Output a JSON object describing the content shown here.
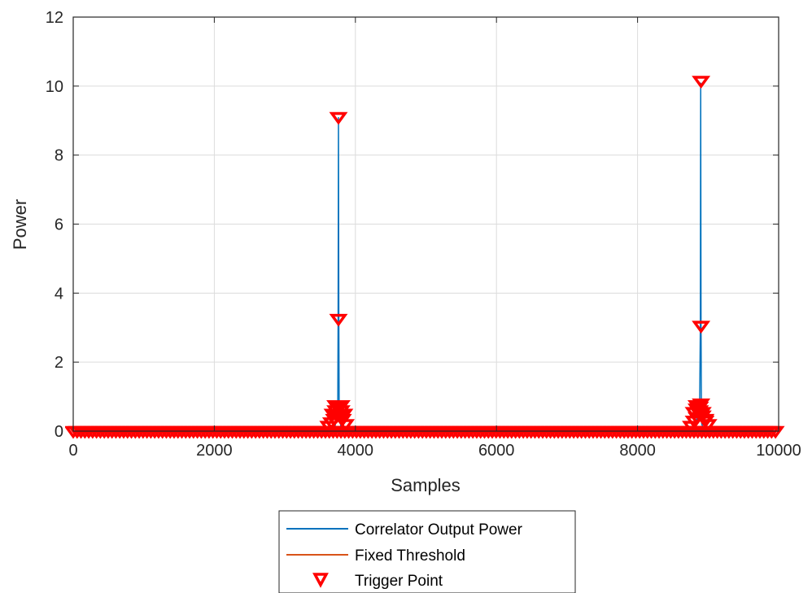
{
  "chart_data": {
    "type": "line",
    "xlabel": "Samples",
    "ylabel": "Power",
    "xlim": [
      0,
      10000
    ],
    "ylim": [
      0,
      12
    ],
    "xticks": [
      0,
      2000,
      4000,
      6000,
      8000,
      10000
    ],
    "yticks": [
      0,
      2,
      4,
      6,
      8,
      10,
      12
    ],
    "grid": true,
    "legend_position": "bottom-outside",
    "series": [
      {
        "name": "Correlator Output Power",
        "kind": "line",
        "color": "#0072BD",
        "x": [
          0,
          3700,
          3750,
          3755,
          3760,
          3765,
          3770,
          3800,
          8800,
          8880,
          8890,
          8895,
          8900,
          8905,
          8910,
          8950,
          10000
        ],
        "y": [
          0,
          0,
          0.6,
          3.2,
          9.1,
          3.2,
          0.6,
          0,
          0,
          0.7,
          3.0,
          10.1,
          3.0,
          0.7,
          0.2,
          0,
          0
        ]
      },
      {
        "name": "Fixed Threshold",
        "kind": "line",
        "color": "#D95319",
        "x": [
          0,
          10000
        ],
        "y": [
          0.05,
          0.05
        ]
      },
      {
        "name": "Trigger Point",
        "kind": "scatter",
        "marker": "triangle-down",
        "color": "#FF0000",
        "x": [
          3760,
          3760,
          3620,
          3660,
          3700,
          3740,
          3780,
          3820,
          3860,
          3680,
          3720,
          3760,
          3800,
          3840,
          3720,
          3760,
          3800,
          8900,
          8900,
          8900,
          8760,
          8800,
          8840,
          8880,
          8920,
          8960,
          9000,
          8800,
          8840,
          8880,
          8920,
          8960,
          8840,
          8880
        ],
        "y": [
          9.1,
          3.25,
          0.15,
          0.25,
          0.35,
          0.45,
          0.45,
          0.35,
          0.2,
          0.5,
          0.6,
          0.7,
          0.6,
          0.5,
          0.75,
          0.75,
          0.75,
          10.15,
          3.05,
          0.8,
          0.15,
          0.3,
          0.4,
          0.5,
          0.45,
          0.35,
          0.2,
          0.55,
          0.65,
          0.6,
          0.55,
          0.3,
          0.75,
          0.7
        ],
        "baseline_band": {
          "from": 0,
          "to": 10000,
          "step": 55,
          "y": 0
        }
      }
    ]
  }
}
